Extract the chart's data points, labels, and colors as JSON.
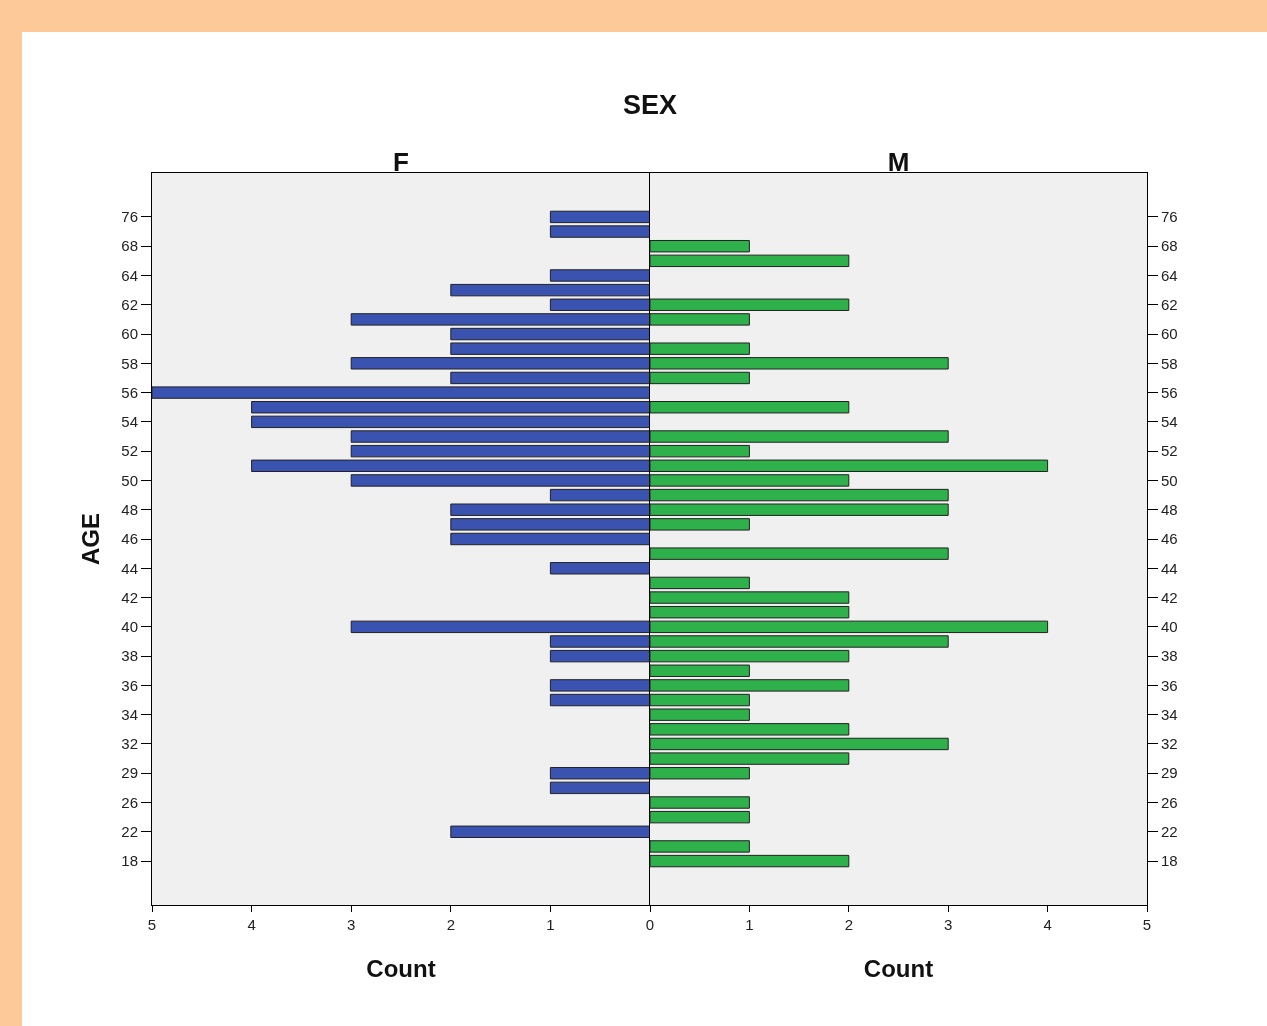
{
  "chart_data": [
    {
      "type": "bar",
      "title": "SEX",
      "subtitle": "F",
      "xlabel": "Count",
      "ylabel": "AGE",
      "orientation": "horizontal",
      "categories": [
        "76",
        null,
        "68",
        null,
        "64",
        null,
        "62",
        null,
        "60",
        null,
        "58",
        null,
        "56",
        null,
        "54",
        null,
        "52",
        null,
        "50",
        null,
        "48",
        null,
        "46",
        null,
        "44",
        null,
        "42",
        null,
        "40",
        null,
        "38",
        null,
        "36",
        null,
        "34",
        null,
        "32",
        null,
        "29",
        null,
        "26",
        null,
        "22",
        null,
        "18"
      ],
      "series": [
        {
          "color": "#3b53b0",
          "values": [
            1,
            1,
            null,
            null,
            1,
            2,
            1,
            3,
            2,
            2,
            3,
            2,
            5,
            4,
            4,
            3,
            3,
            4,
            3,
            1,
            2,
            2,
            2,
            null,
            1,
            null,
            null,
            null,
            3,
            1,
            1,
            null,
            1,
            1,
            null,
            null,
            null,
            null,
            1,
            1,
            null,
            null,
            2,
            null,
            null
          ]
        }
      ],
      "xlim": [
        5,
        0
      ],
      "xticks": [
        5,
        4,
        3,
        2,
        1,
        0
      ]
    },
    {
      "type": "bar",
      "subtitle": "M",
      "xlabel": "Count",
      "orientation": "horizontal",
      "categories": [
        "76",
        null,
        "68",
        null,
        "64",
        null,
        "62",
        null,
        "60",
        null,
        "58",
        null,
        "56",
        null,
        "54",
        null,
        "52",
        null,
        "50",
        null,
        "48",
        null,
        "46",
        null,
        "44",
        null,
        "42",
        null,
        "40",
        null,
        "38",
        null,
        "36",
        null,
        "34",
        null,
        "32",
        null,
        "29",
        null,
        "26",
        null,
        "22",
        null,
        "18"
      ],
      "series": [
        {
          "color": "#2eb04a",
          "values": [
            null,
            null,
            1,
            2,
            null,
            null,
            2,
            1,
            null,
            1,
            3,
            1,
            null,
            2,
            null,
            3,
            1,
            4,
            2,
            3,
            3,
            1,
            null,
            3,
            null,
            1,
            2,
            2,
            4,
            3,
            2,
            1,
            2,
            1,
            1,
            2,
            3,
            2,
            1,
            null,
            1,
            1,
            null,
            1,
            2
          ]
        }
      ],
      "xlim": [
        0,
        5
      ],
      "xticks": [
        {
          "value": 0,
          "label": null
        },
        1,
        2,
        3,
        4,
        5
      ]
    }
  ]
}
